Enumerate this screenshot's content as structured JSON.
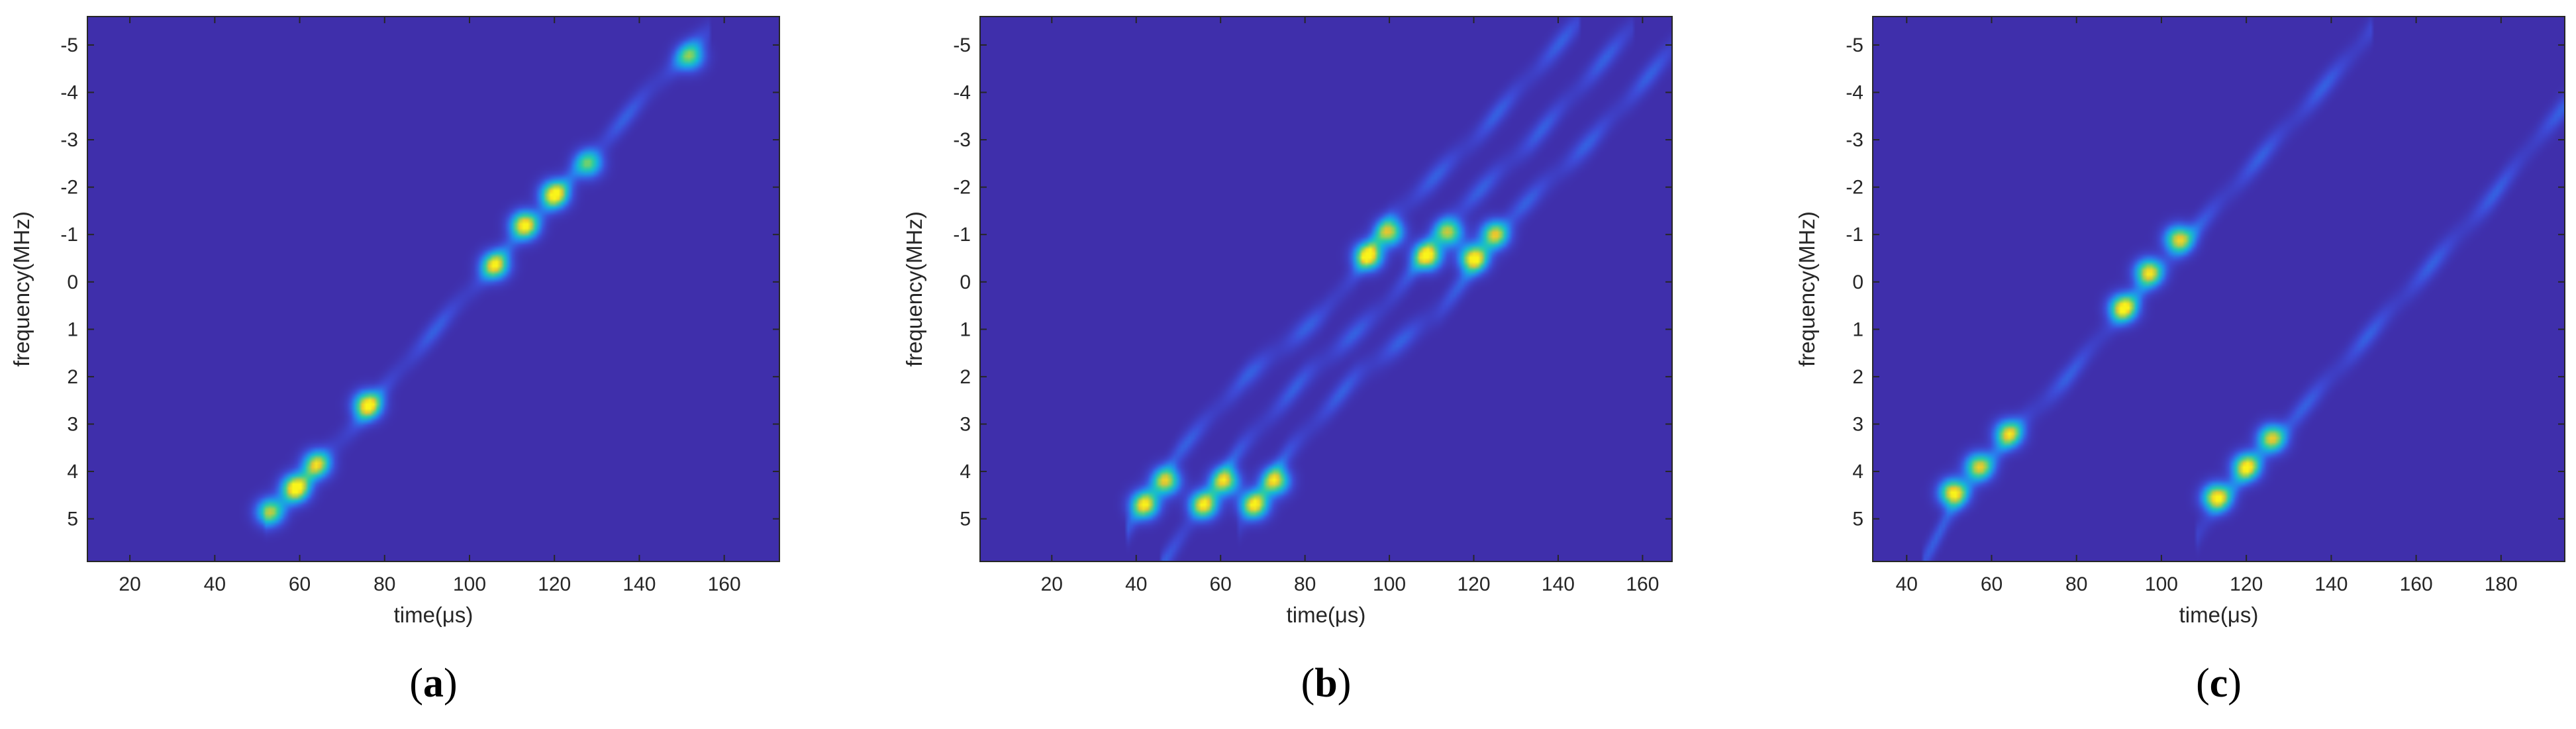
{
  "colors": {
    "background": "#3f2fab",
    "axis": "#262626"
  },
  "chart_data": [
    {
      "type": "heatmap",
      "panel": "(a)",
      "panel_letter": "a",
      "xlabel": "time(μs)",
      "ylabel": "frequency(MHz)",
      "xlim": [
        10,
        173
      ],
      "ylim": [
        -5.6,
        5.9
      ],
      "y_reversed": true,
      "xticks": [
        20,
        40,
        60,
        80,
        100,
        120,
        140,
        160
      ],
      "yticks": [
        -5,
        -4,
        -3,
        -2,
        -1,
        0,
        1,
        2,
        3,
        4,
        5
      ],
      "colormap": "parula",
      "series": [
        {
          "ridge": [
            [
              52,
              5.0
            ],
            [
              60,
              4.3
            ],
            [
              68,
              3.5
            ],
            [
              76,
              2.7
            ],
            [
              86,
              1.6
            ],
            [
              96,
              0.6
            ],
            [
              104,
              -0.2
            ],
            [
              112,
              -1.0
            ],
            [
              120,
              -1.8
            ],
            [
              128,
              -2.6
            ],
            [
              136,
              -3.4
            ],
            [
              144,
              -4.2
            ],
            [
              152,
              -4.9
            ],
            [
              157,
              -5.3
            ]
          ],
          "hotspots": [
            [
              53,
              4.85,
              0.75
            ],
            [
              59,
              4.35,
              1.0
            ],
            [
              64,
              3.85,
              0.8
            ],
            [
              76,
              2.6,
              0.95
            ],
            [
              106,
              -0.35,
              0.85
            ],
            [
              113,
              -1.2,
              1.0
            ],
            [
              120,
              -1.85,
              0.95
            ],
            [
              128,
              -2.5,
              0.65
            ],
            [
              152,
              -4.75,
              0.6
            ]
          ]
        }
      ]
    },
    {
      "type": "heatmap",
      "panel": "(b)",
      "panel_letter": "b",
      "xlabel": "time(μs)",
      "ylabel": "frequency(MHz)",
      "xlim": [
        3,
        167
      ],
      "ylim": [
        -5.6,
        5.9
      ],
      "y_reversed": true,
      "xticks": [
        20,
        40,
        60,
        80,
        100,
        120,
        140,
        160
      ],
      "yticks": [
        -5,
        -4,
        -3,
        -2,
        -1,
        0,
        1,
        2,
        3,
        4,
        5
      ],
      "colormap": "parula",
      "series": [
        {
          "ridge": [
            [
              38,
              5.2
            ],
            [
              50,
              3.6
            ],
            [
              66,
              2.0
            ],
            [
              84,
              0.7
            ],
            [
              92,
              -0.2
            ],
            [
              100,
              -1.3
            ],
            [
              120,
              -3.0
            ],
            [
              140,
              -5.0
            ],
            [
              145,
              -5.5
            ]
          ],
          "hotspots": [
            [
              42,
              4.7,
              0.95
            ],
            [
              47,
              4.2,
              0.85
            ],
            [
              95,
              -0.55,
              1.0
            ],
            [
              100,
              -1.05,
              0.8
            ]
          ]
        },
        {
          "ridge": [
            [
              46,
              6.0
            ],
            [
              52,
              5.2
            ],
            [
              64,
              3.6
            ],
            [
              80,
              2.0
            ],
            [
              98,
              0.6
            ],
            [
              106,
              -0.3
            ],
            [
              114,
              -1.3
            ],
            [
              134,
              -3.0
            ],
            [
              154,
              -5.0
            ],
            [
              158,
              -5.4
            ]
          ],
          "hotspots": [
            [
              56,
              4.7,
              0.95
            ],
            [
              61,
              4.2,
              0.85
            ],
            [
              109,
              -0.55,
              1.0
            ],
            [
              114,
              -1.05,
              0.8
            ]
          ]
        },
        {
          "ridge": [
            [
              64,
              5.2
            ],
            [
              76,
              3.6
            ],
            [
              92,
              2.0
            ],
            [
              112,
              0.6
            ],
            [
              120,
              -0.3
            ],
            [
              128,
              -1.3
            ],
            [
              148,
              -3.0
            ],
            [
              167,
              -4.9
            ]
          ],
          "hotspots": [
            [
              68,
              4.7,
              0.95
            ],
            [
              73,
              4.2,
              0.85
            ],
            [
              120,
              -0.5,
              1.0
            ],
            [
              125,
              -1.0,
              0.85
            ]
          ]
        }
      ]
    },
    {
      "type": "heatmap",
      "panel": "(c)",
      "panel_letter": "c",
      "xlabel": "time(μs)",
      "ylabel": "frequency(MHz)",
      "xlim": [
        32,
        195
      ],
      "ylim": [
        -5.6,
        5.9
      ],
      "y_reversed": true,
      "xticks": [
        40,
        60,
        80,
        100,
        120,
        140,
        160,
        180
      ],
      "yticks": [
        -5,
        -4,
        -3,
        -2,
        -1,
        0,
        1,
        2,
        3,
        4,
        5
      ],
      "colormap": "parula",
      "series": [
        {
          "ridge": [
            [
              44,
              5.9
            ],
            [
              50,
              4.9
            ],
            [
              58,
              3.9
            ],
            [
              68,
              2.9
            ],
            [
              78,
              2.0
            ],
            [
              90,
              0.7
            ],
            [
              100,
              -0.3
            ],
            [
              108,
              -1.1
            ],
            [
              120,
              -2.3
            ],
            [
              132,
              -3.5
            ],
            [
              145,
              -4.8
            ],
            [
              150,
              -5.4
            ]
          ],
          "hotspots": [
            [
              51,
              4.45,
              1.0
            ],
            [
              57,
              3.9,
              0.85
            ],
            [
              64,
              3.2,
              0.8
            ],
            [
              91,
              0.55,
              0.95
            ],
            [
              97,
              -0.2,
              0.9
            ],
            [
              104,
              -0.9,
              0.85
            ]
          ]
        },
        {
          "ridge": [
            [
              108,
              5.4
            ],
            [
              114,
              4.6
            ],
            [
              122,
              3.8
            ],
            [
              130,
              3.0
            ],
            [
              140,
              2.0
            ],
            [
              152,
              0.8
            ],
            [
              166,
              -0.6
            ],
            [
              178,
              -1.8
            ],
            [
              190,
              -3.2
            ],
            [
              195,
              -3.7
            ]
          ],
          "hotspots": [
            [
              113,
              4.55,
              1.0
            ],
            [
              120,
              3.9,
              0.9
            ],
            [
              126,
              3.3,
              0.85
            ]
          ]
        }
      ]
    }
  ]
}
